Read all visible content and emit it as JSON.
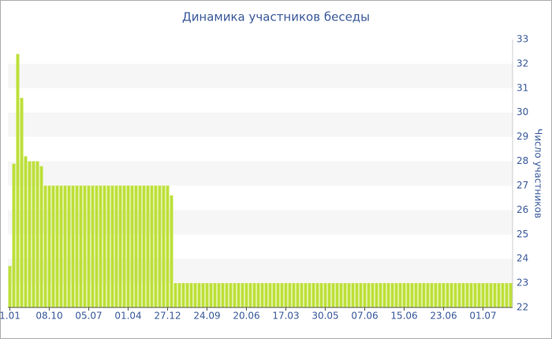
{
  "chart_data": {
    "type": "bar",
    "title": "Динамика участников беседы",
    "y_axis_label": "Число участников",
    "categories": [
      "1.01",
      null,
      null,
      null,
      null,
      null,
      null,
      null,
      null,
      null,
      "08.10",
      null,
      null,
      null,
      null,
      null,
      null,
      null,
      null,
      null,
      "05.07",
      null,
      null,
      null,
      null,
      null,
      null,
      null,
      null,
      null,
      "01.04",
      null,
      null,
      null,
      null,
      null,
      null,
      null,
      null,
      null,
      "27.12",
      null,
      null,
      null,
      null,
      null,
      null,
      null,
      null,
      null,
      "24.09",
      null,
      null,
      null,
      null,
      null,
      null,
      null,
      null,
      null,
      "20.06",
      null,
      null,
      null,
      null,
      null,
      null,
      null,
      null,
      null,
      "17.03",
      null,
      null,
      null,
      null,
      null,
      null,
      null,
      null,
      null,
      "30.05",
      null,
      null,
      null,
      null,
      null,
      null,
      null,
      null,
      null,
      "07.06",
      null,
      null,
      null,
      null,
      null,
      null,
      null,
      null,
      null,
      "15.06",
      null,
      null,
      null,
      null,
      null,
      null,
      null,
      null,
      null,
      "23.06",
      null,
      null,
      null,
      null,
      null,
      null,
      null,
      null,
      null,
      "01.07",
      null,
      null,
      null,
      null,
      null,
      null,
      null
    ],
    "values": [
      23.7,
      27.9,
      32.4,
      30.6,
      28.2,
      28,
      28,
      28,
      27.8,
      27,
      27,
      27,
      27,
      27,
      27,
      27,
      27,
      27,
      27,
      27,
      27,
      27,
      27,
      27,
      27,
      27,
      27,
      27,
      27,
      27,
      27,
      27,
      27,
      27,
      27,
      27,
      27,
      27,
      27,
      27,
      27,
      26.6,
      23,
      23,
      23,
      23,
      23,
      23,
      23,
      23,
      23,
      23,
      23,
      23,
      23,
      23,
      23,
      23,
      23,
      23,
      23,
      23,
      23,
      23,
      23,
      23,
      23,
      23,
      23,
      23,
      23,
      23,
      23,
      23,
      23,
      23,
      23,
      23,
      23,
      23,
      23,
      23,
      23,
      23,
      23,
      23,
      23,
      23,
      23,
      23,
      23,
      23,
      23,
      23,
      23,
      23,
      23,
      23,
      23,
      23,
      23,
      23,
      23,
      23,
      23,
      23,
      23,
      23,
      23,
      23,
      23,
      23,
      23,
      23,
      23,
      23,
      23,
      23,
      23,
      23,
      23,
      23,
      23,
      23,
      23,
      23,
      23,
      23
    ],
    "color": "#bde03a",
    "ylim": [
      22,
      33
    ],
    "yticks": [
      22,
      23,
      24,
      25,
      26,
      27,
      28,
      29,
      30,
      31,
      32,
      33
    ],
    "grid": true
  }
}
